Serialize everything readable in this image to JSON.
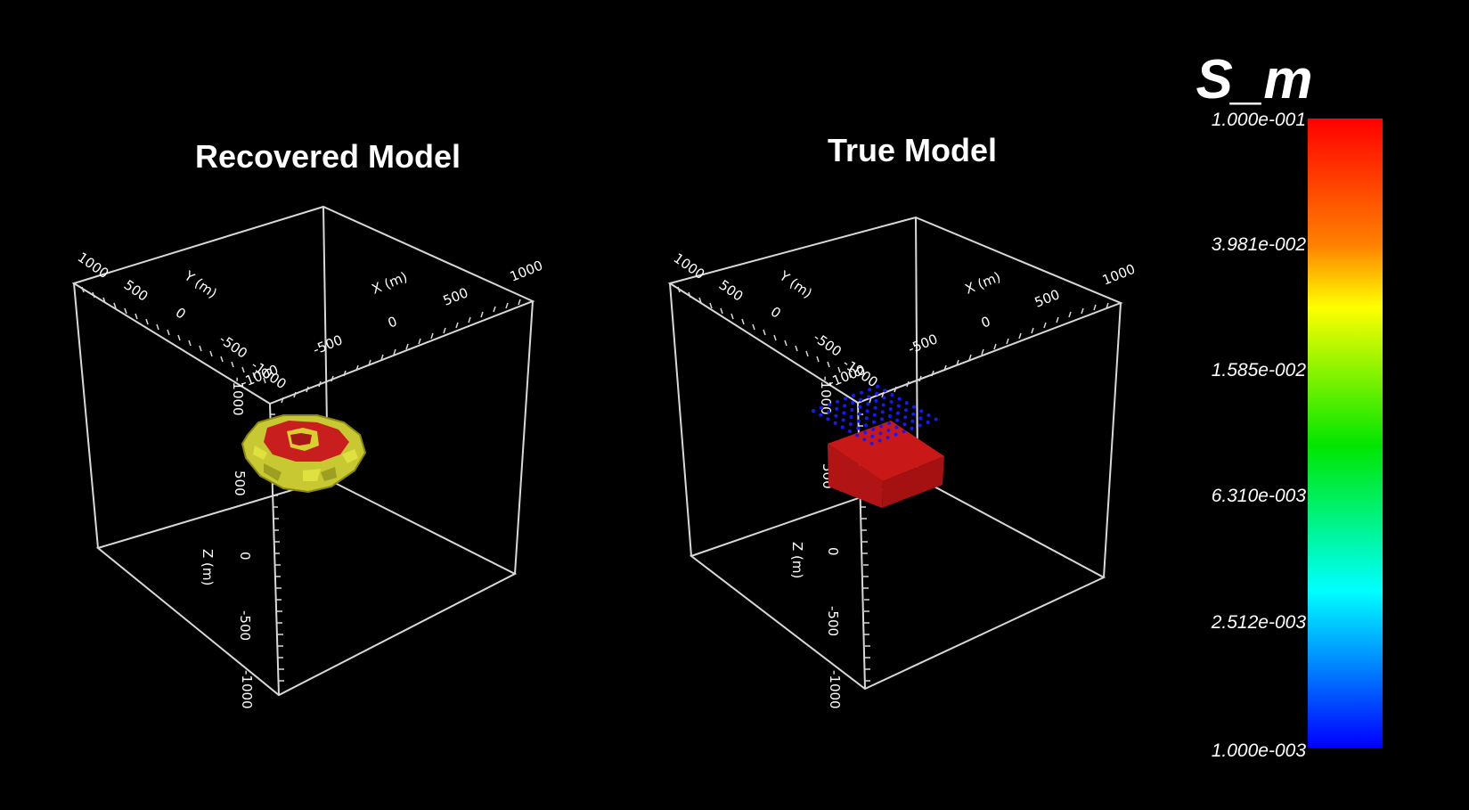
{
  "panels": [
    {
      "title": "Recovered Model",
      "axes": {
        "x_label": "X (m)",
        "y_label": "Y (m)",
        "z_label": "Z (m)",
        "x_ticks": [
          "1000",
          "500",
          "0",
          "-500",
          "-1000"
        ],
        "y_ticks": [
          "1000",
          "500",
          "0",
          "-500",
          "-1000"
        ],
        "z_ticks": [
          "-1000",
          "500",
          "0",
          "-500",
          "-1000"
        ]
      },
      "body": "recovered-anomaly"
    },
    {
      "title": "True Model",
      "axes": {
        "x_label": "X (m)",
        "y_label": "Y (m)",
        "z_label": "Z (m)",
        "x_ticks": [
          "1000",
          "500",
          "0",
          "-500",
          "-1000"
        ],
        "y_ticks": [
          "1000",
          "500",
          "0",
          "-500",
          "-1000"
        ],
        "z_ticks": [
          "-1000",
          "500",
          "0",
          "-500",
          "-1000"
        ]
      },
      "body": "true-block-with-receivers"
    }
  ],
  "colorbar": {
    "title": "S_m",
    "scale": "log",
    "range": [
      0.001,
      0.1
    ],
    "tick_labels": [
      "1.000e-001",
      "3.981e-002",
      "1.585e-002",
      "6.310e-003",
      "2.512e-003",
      "1.000e-003"
    ],
    "colors": {
      "top": "#ff0000",
      "orange": "#ff8c00",
      "yellow": "#ffff00",
      "green": "#00e000",
      "cyan": "#00ffff",
      "bottom": "#0000ff"
    }
  },
  "colors": {
    "background": "#000000",
    "box_lines": "#d8d8d8",
    "anomaly_core": "#c81e1e",
    "anomaly_rim": "#c8c832",
    "receiver_dots": "#1818ff"
  }
}
